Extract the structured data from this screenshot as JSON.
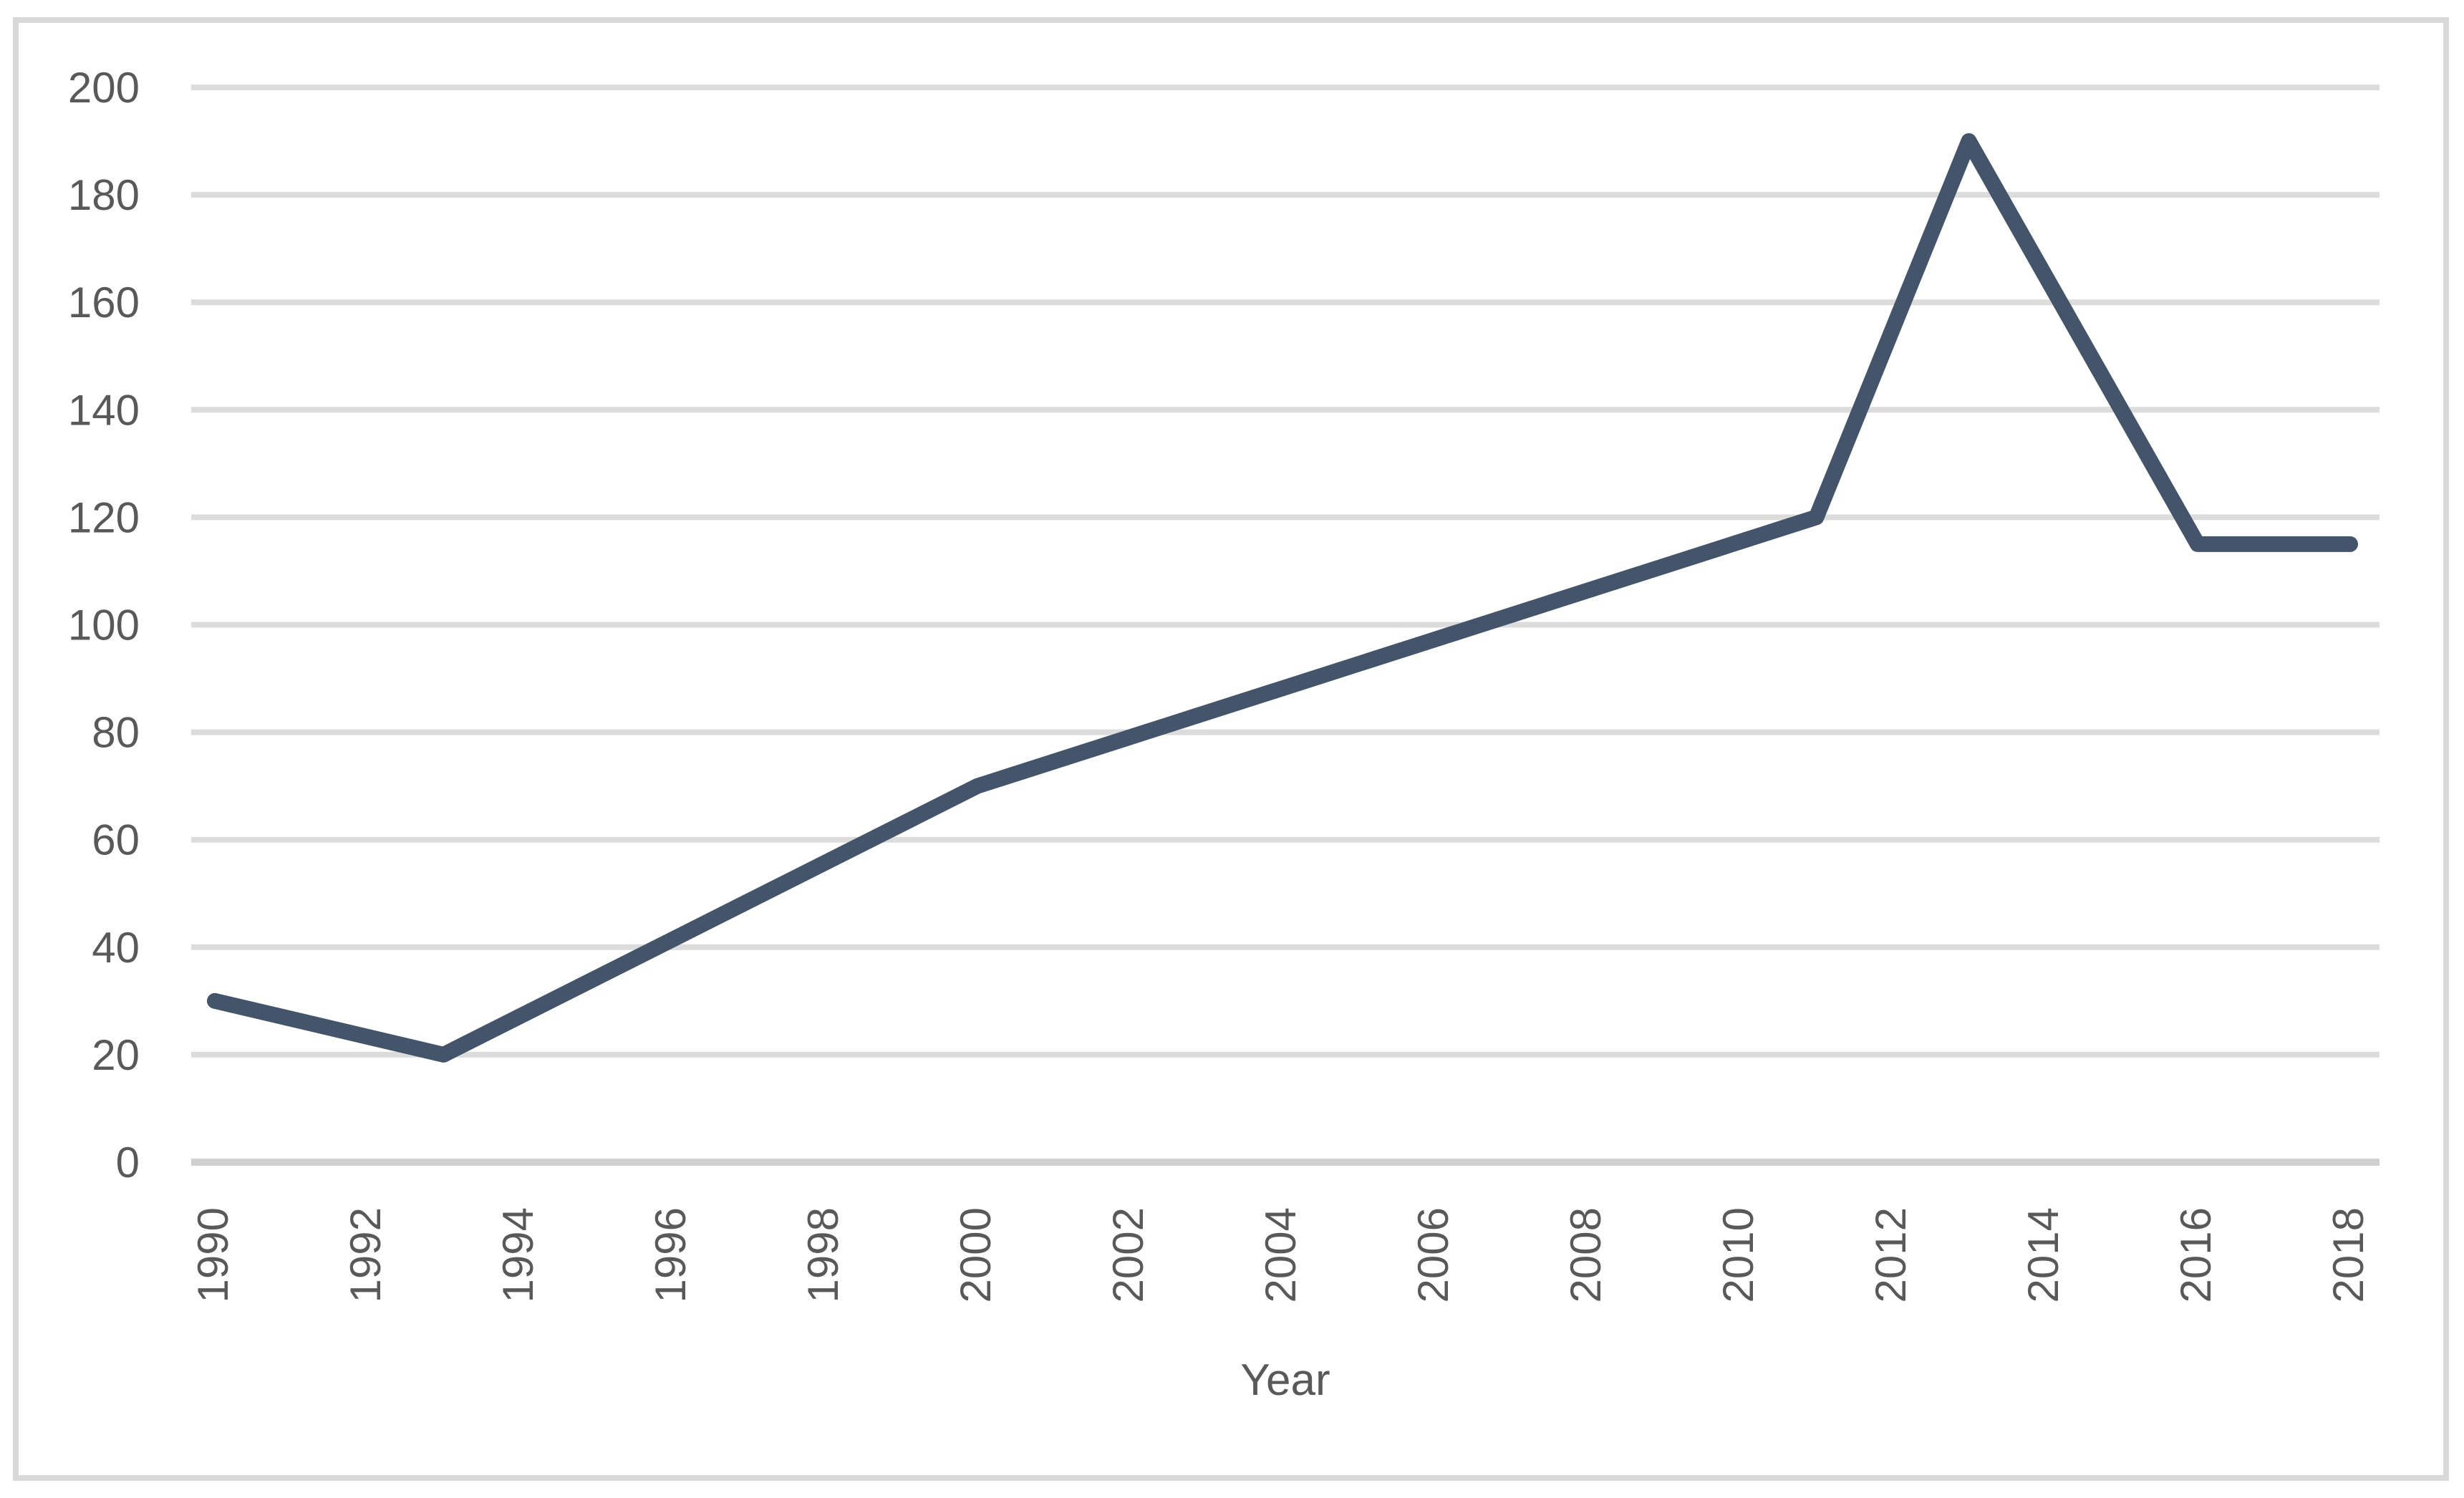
{
  "chart_data": {
    "type": "line",
    "title": "",
    "xlabel": "Year",
    "ylabel": "",
    "x": [
      1990,
      1993,
      2000,
      2011,
      2013,
      2016,
      2018
    ],
    "values": [
      30,
      20,
      70,
      120,
      190,
      115,
      115
    ],
    "series": [
      {
        "name": "",
        "x": [
          1990,
          1993,
          2000,
          2011,
          2013,
          2016,
          2018
        ],
        "values": [
          30,
          20,
          70,
          120,
          190,
          115,
          115
        ]
      }
    ],
    "x_tick_labels": [
      "1990",
      "1992",
      "1994",
      "1996",
      "1998",
      "2000",
      "2002",
      "2004",
      "2006",
      "2008",
      "2010",
      "2012",
      "2014",
      "2016",
      "2018"
    ],
    "x_tick_years": [
      1990,
      1992,
      1994,
      1996,
      1998,
      2000,
      2002,
      2004,
      2006,
      2008,
      2010,
      2012,
      2014,
      2016,
      2018
    ],
    "y_ticks": [
      0,
      20,
      40,
      60,
      80,
      100,
      120,
      140,
      160,
      180,
      200
    ],
    "xlim": [
      1990,
      2018
    ],
    "ylim": [
      0,
      200
    ],
    "grid": "horizontal",
    "legend_position": "none",
    "x_tick_label_rotation_deg": -90,
    "colors": {
      "line": "#44546A",
      "gridline": "#DCDCDC",
      "axis_line": "#D0D0D0",
      "tick_label": "#595959",
      "axis_title": "#595959",
      "chart_border": "#D9D9D9",
      "background": "#FFFFFF"
    }
  }
}
